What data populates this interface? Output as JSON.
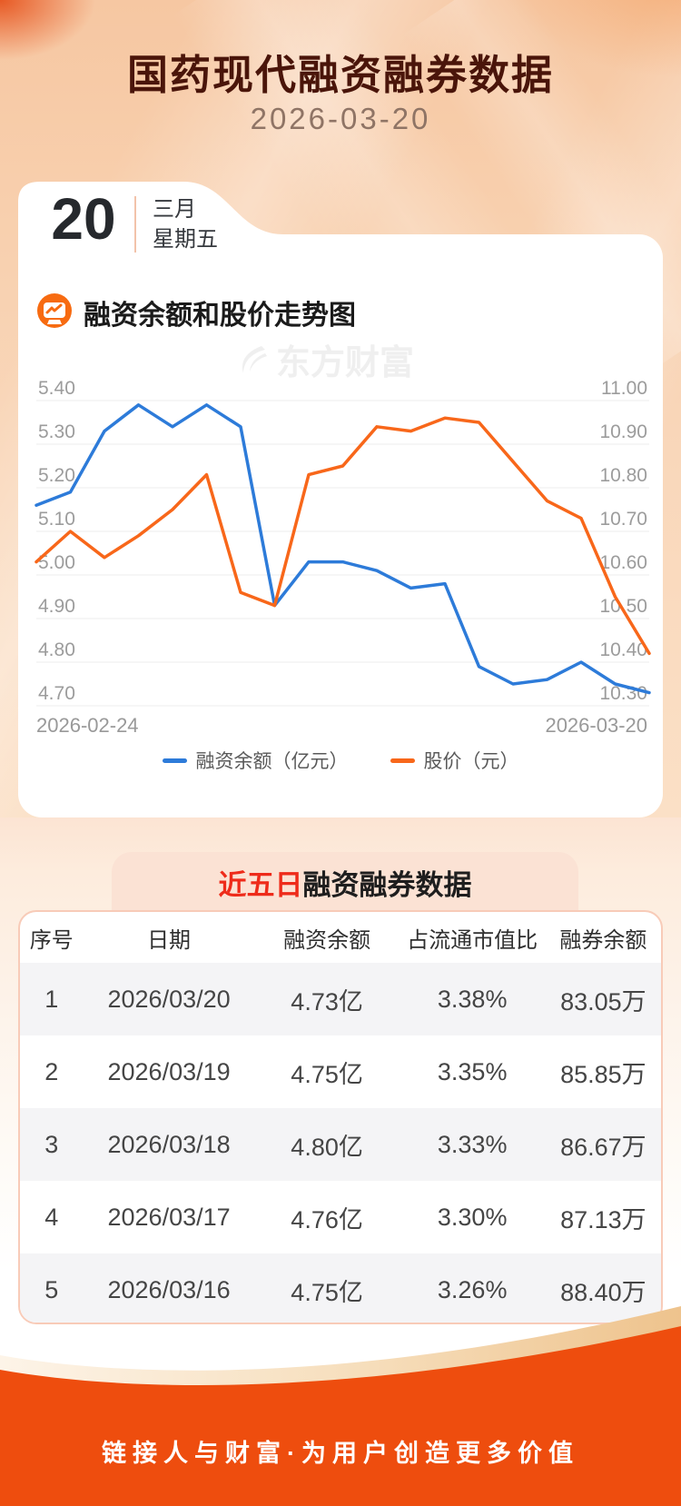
{
  "header": {
    "title": "国药现代融资融券数据",
    "date": "2026-03-20"
  },
  "date_card": {
    "day": "20",
    "month": "三月",
    "weekday": "星期五"
  },
  "chart_section": {
    "title": "融资余额和股价走势图"
  },
  "watermark": "东方财富",
  "chart_data": {
    "type": "line",
    "x": [
      "2026-02-24",
      "2026-02-25",
      "2026-02-26",
      "2026-02-27",
      "2026-03-02",
      "2026-03-03",
      "2026-03-04",
      "2026-03-05",
      "2026-03-06",
      "2026-03-09",
      "2026-03-10",
      "2026-03-11",
      "2026-03-12",
      "2026-03-13",
      "2026-03-16",
      "2026-03-17",
      "2026-03-18",
      "2026-03-19",
      "2026-03-20"
    ],
    "x_axis_labels": {
      "left": "2026-02-24",
      "right": "2026-03-20"
    },
    "left_axis": {
      "min": 4.7,
      "max": 5.4,
      "ticks": [
        "5.40",
        "5.30",
        "5.20",
        "5.10",
        "5.00",
        "4.90",
        "4.80",
        "4.70"
      ]
    },
    "right_axis": {
      "min": 10.3,
      "max": 11.0,
      "ticks": [
        "11.00",
        "10.90",
        "10.80",
        "10.70",
        "10.60",
        "10.50",
        "10.40",
        "10.30"
      ]
    },
    "grid": true,
    "legend_position": "bottom",
    "series": [
      {
        "name": "融资余额（亿元）",
        "axis": "left",
        "color": "#2d7bd9",
        "values": [
          5.16,
          5.19,
          5.33,
          5.39,
          5.34,
          5.39,
          5.34,
          4.93,
          5.03,
          5.03,
          5.01,
          4.97,
          4.98,
          4.79,
          4.75,
          4.76,
          4.8,
          4.75,
          4.73
        ]
      },
      {
        "name": "股价（元）",
        "axis": "right",
        "color": "#f8671a",
        "values": [
          10.63,
          10.7,
          10.64,
          10.69,
          10.75,
          10.83,
          10.56,
          10.53,
          10.83,
          10.85,
          10.94,
          10.93,
          10.96,
          10.95,
          10.86,
          10.77,
          10.73,
          10.55,
          10.42
        ]
      }
    ]
  },
  "table_section": {
    "title_highlight": "近五日",
    "title_rest": "融资融券数据",
    "columns": [
      "序号",
      "日期",
      "融资余额",
      "占流通市值比",
      "融券余额"
    ],
    "rows": [
      [
        "1",
        "2026/03/20",
        "4.73亿",
        "3.38%",
        "83.05万"
      ],
      [
        "2",
        "2026/03/19",
        "4.75亿",
        "3.35%",
        "85.85万"
      ],
      [
        "3",
        "2026/03/18",
        "4.80亿",
        "3.33%",
        "86.67万"
      ],
      [
        "4",
        "2026/03/17",
        "4.76亿",
        "3.30%",
        "87.13万"
      ],
      [
        "5",
        "2026/03/16",
        "4.75亿",
        "3.26%",
        "88.40万"
      ]
    ]
  },
  "footer": {
    "slogan": "链接人与财富·为用户创造更多价值"
  },
  "colors": {
    "footer_orange": "#ee4d0e",
    "title_maroon": "#4a150a",
    "tab_red": "#ee2b1a",
    "line_blue": "#2d7bd9",
    "line_orange": "#f8671a"
  }
}
